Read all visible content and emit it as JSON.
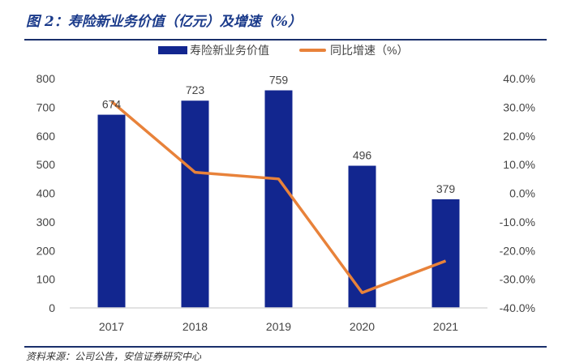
{
  "title": "图 2：寿险新业务价值（亿元）及增速（%）",
  "source": "资料来源：公司公告，安信证券研究中心",
  "chart_data": {
    "type": "bar+line",
    "title": "图 2：寿险新业务价值（亿元）及增速（%）",
    "categories": [
      "2017",
      "2018",
      "2019",
      "2020",
      "2021"
    ],
    "series": [
      {
        "name": "寿险新业务价值",
        "type": "bar",
        "axis": "left",
        "values": [
          674,
          723,
          759,
          496,
          379
        ],
        "color": "#12268f",
        "data_labels": [
          "674",
          "723",
          "759",
          "496",
          "379"
        ]
      },
      {
        "name": "同比增速（%）",
        "type": "line",
        "axis": "right",
        "values": [
          32.0,
          7.3,
          5.0,
          -34.7,
          -23.6
        ],
        "color": "#e8823a"
      }
    ],
    "left_axis": {
      "ylim": [
        0,
        800
      ],
      "ticks": [
        "0",
        "100",
        "200",
        "300",
        "400",
        "500",
        "600",
        "700",
        "800"
      ]
    },
    "right_axis": {
      "ylim": [
        -40,
        40
      ],
      "ticks": [
        "-40.0%",
        "-30.0%",
        "-20.0%",
        "-10.0%",
        "0.0%",
        "10.0%",
        "20.0%",
        "30.0%",
        "40.0%"
      ]
    },
    "grid": false,
    "legend": "top"
  }
}
